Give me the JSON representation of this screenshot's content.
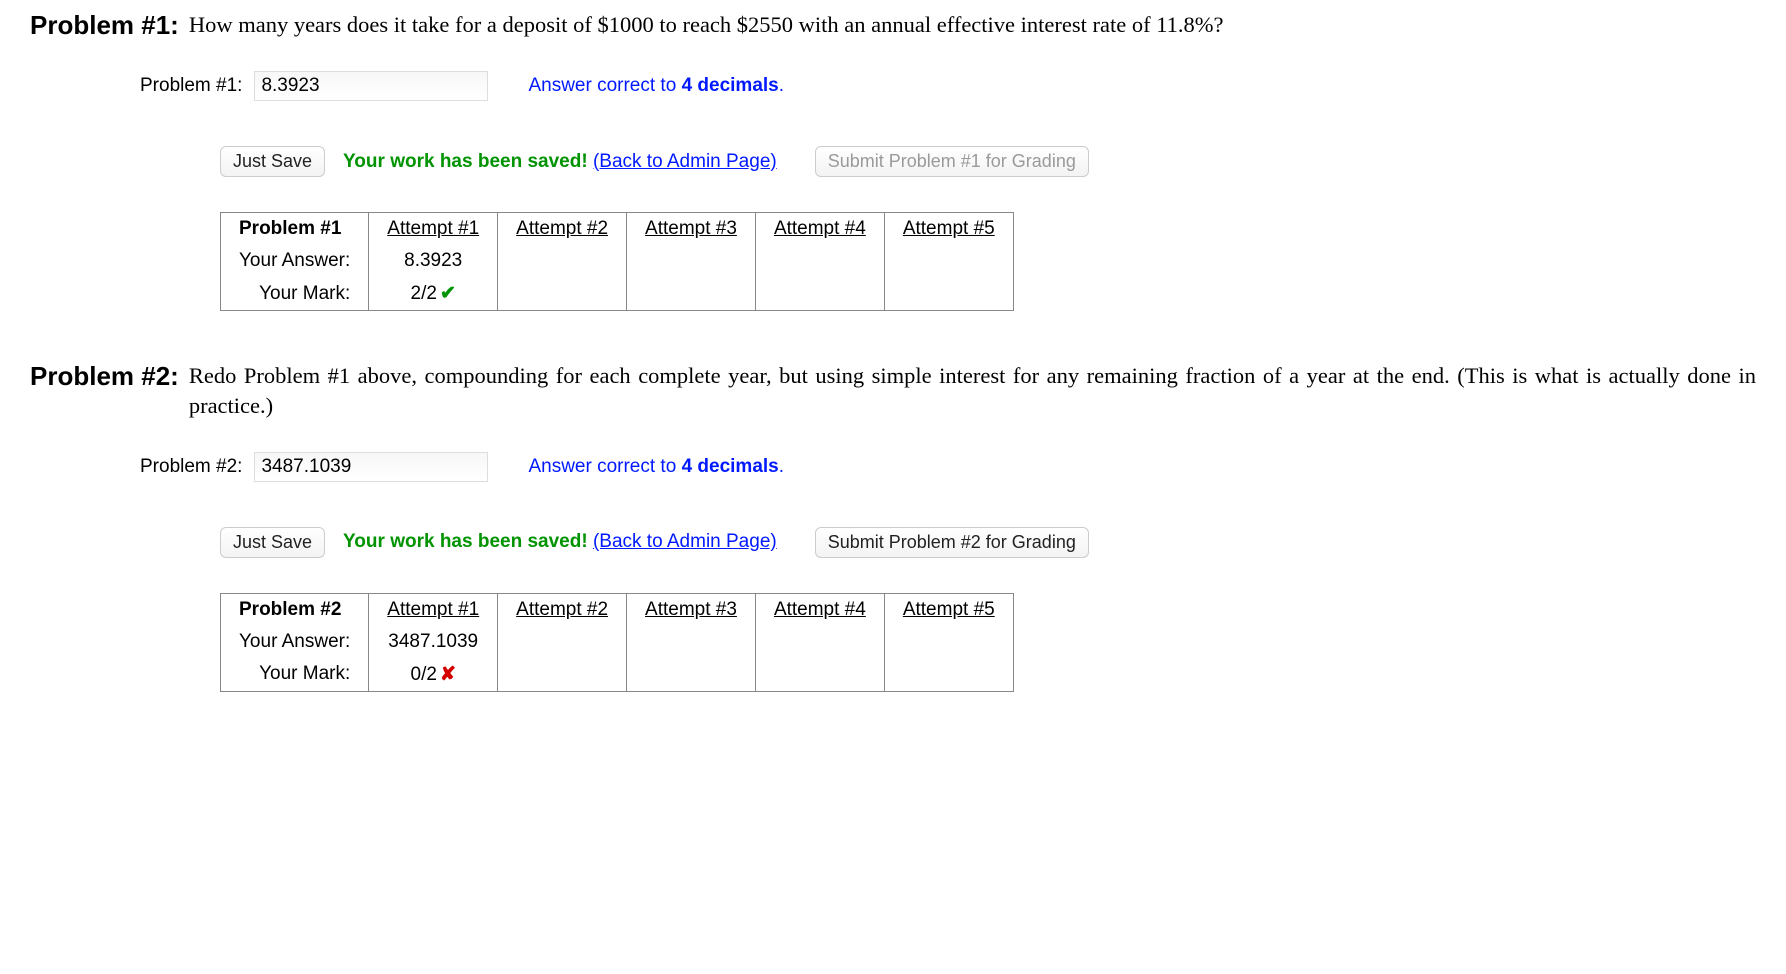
{
  "problems": [
    {
      "number_label": "Problem #1:",
      "text": "How many years does it take for a deposit of $1000 to reach $2550 with an annual effective interest rate of 11.8%?",
      "answer_label": "Problem #1:",
      "answer_value": "8.3923",
      "hint_prefix": "Answer correct to ",
      "hint_bold": "4 decimals",
      "hint_suffix": ".",
      "just_save_label": "Just Save",
      "saved_msg": "Your work has been saved!",
      "admin_link_label": "(Back to Admin Page)",
      "submit_label": "Submit Problem #1 for Grading",
      "submit_disabled": true,
      "table": {
        "header_label": "Problem #1",
        "attempt_labels": [
          "Attempt #1",
          "Attempt #2",
          "Attempt #3",
          "Attempt #4",
          "Attempt #5"
        ],
        "rows": [
          {
            "label": "Your Answer:",
            "cells": [
              "8.3923",
              "",
              "",
              "",
              ""
            ]
          },
          {
            "label": "Your Mark:",
            "cells": [
              "2/2",
              "",
              "",
              "",
              ""
            ],
            "mark_icon": "check"
          }
        ]
      }
    },
    {
      "number_label": "Problem #2:",
      "text": "Redo Problem #1 above, compounding for each complete year, but using simple interest for any remaining fraction of a year at the end. (This is what is actually done in practice.)",
      "answer_label": "Problem #2:",
      "answer_value": "3487.1039",
      "hint_prefix": "Answer correct to ",
      "hint_bold": "4 decimals",
      "hint_suffix": ".",
      "just_save_label": "Just Save",
      "saved_msg": "Your work has been saved!",
      "admin_link_label": "(Back to Admin Page)",
      "submit_label": "Submit Problem #2 for Grading",
      "submit_disabled": false,
      "table": {
        "header_label": "Problem #2",
        "attempt_labels": [
          "Attempt #1",
          "Attempt #2",
          "Attempt #3",
          "Attempt #4",
          "Attempt #5"
        ],
        "rows": [
          {
            "label": "Your Answer:",
            "cells": [
              "3487.1039",
              "",
              "",
              "",
              ""
            ]
          },
          {
            "label": "Your Mark:",
            "cells": [
              "0/2",
              "",
              "",
              "",
              ""
            ],
            "mark_icon": "cross"
          }
        ]
      }
    }
  ]
}
